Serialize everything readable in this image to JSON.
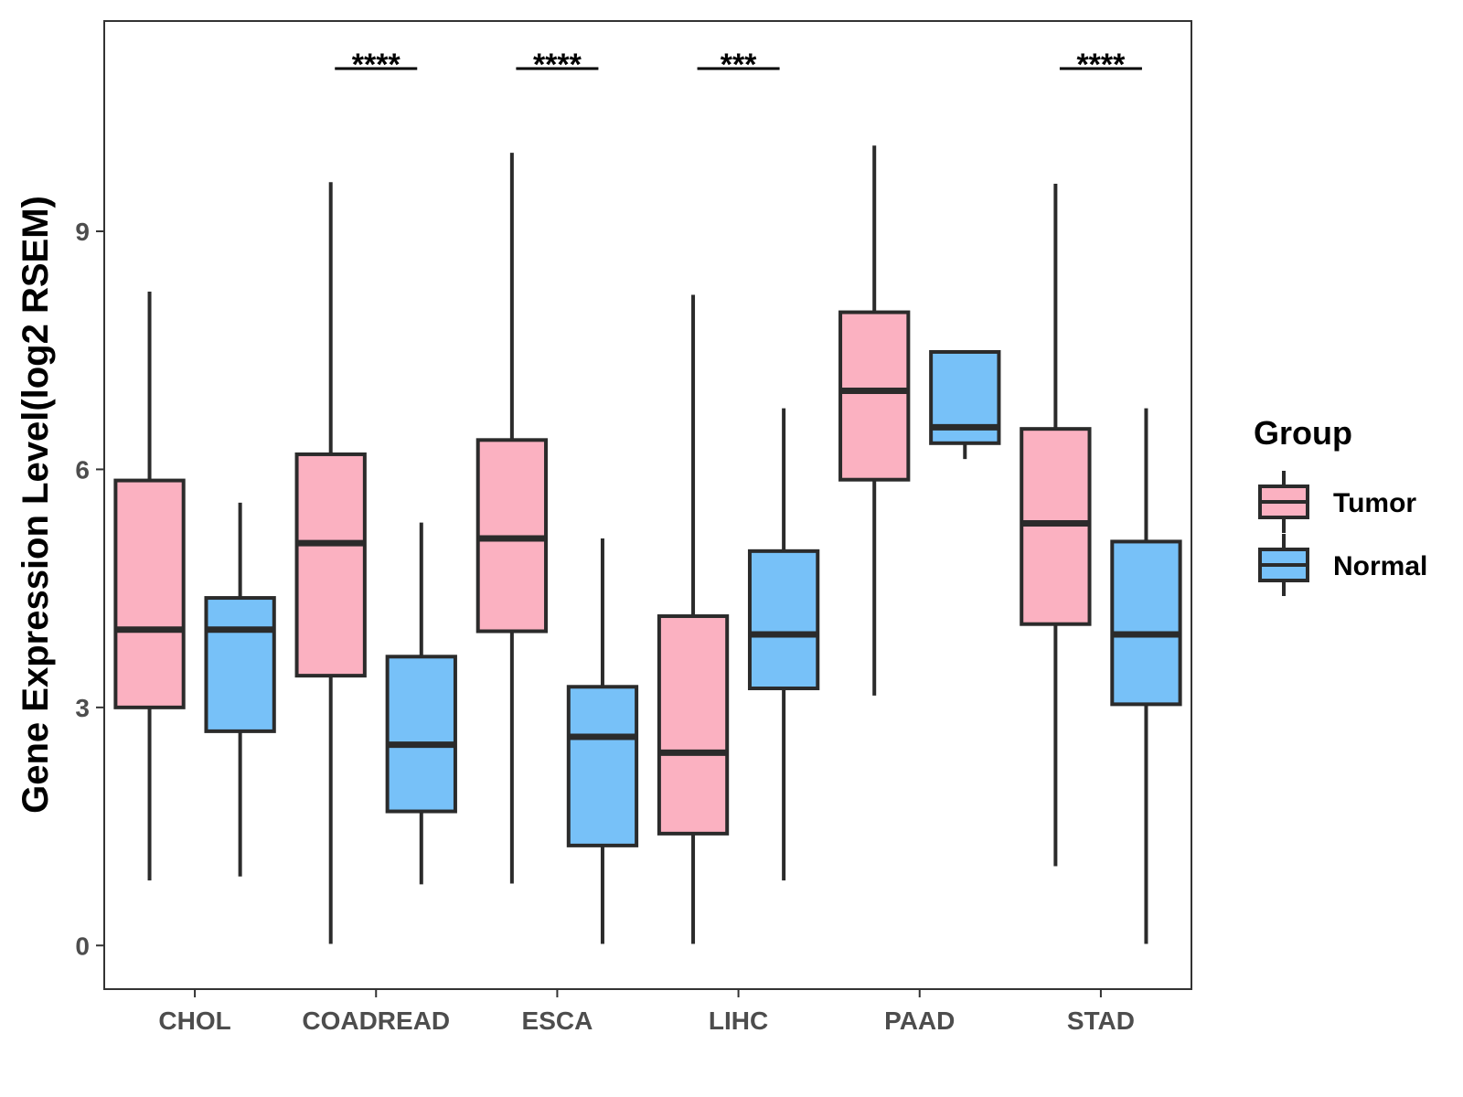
{
  "chart_data": {
    "type": "boxplot",
    "title": "",
    "xlabel": "",
    "ylabel": "Gene Expression Level(log2 RSEM)",
    "ylim": [
      -0.55,
      11.65
    ],
    "yticks": [
      0,
      3,
      6,
      9
    ],
    "categories": [
      "CHOL",
      "COADREAD",
      "ESCA",
      "LIHC",
      "PAAD",
      "STAD"
    ],
    "legend": {
      "title": "Group",
      "position": "right",
      "entries": [
        {
          "name": "Tumor",
          "color": "#fbb1c1"
        },
        {
          "name": "Normal",
          "color": "#77c1f8"
        }
      ]
    },
    "series": [
      {
        "name": "Tumor",
        "color": "#fbb1c1",
        "boxes": [
          {
            "min": 0.82,
            "q1": 3.0,
            "median": 3.98,
            "q3": 5.86,
            "max": 8.24
          },
          {
            "min": 0.02,
            "q1": 3.4,
            "median": 5.07,
            "q3": 6.19,
            "max": 9.62
          },
          {
            "min": 0.78,
            "q1": 3.96,
            "median": 5.13,
            "q3": 6.37,
            "max": 9.99
          },
          {
            "min": 0.02,
            "q1": 1.41,
            "median": 2.43,
            "q3": 4.15,
            "max": 8.2
          },
          {
            "min": 3.15,
            "q1": 5.87,
            "median": 6.99,
            "q3": 7.98,
            "max": 10.08
          },
          {
            "min": 1.0,
            "q1": 4.05,
            "median": 5.32,
            "q3": 6.51,
            "max": 9.6
          }
        ]
      },
      {
        "name": "Normal",
        "color": "#77c1f8",
        "boxes": [
          {
            "min": 0.87,
            "q1": 2.7,
            "median": 3.98,
            "q3": 4.38,
            "max": 5.58
          },
          {
            "min": 0.77,
            "q1": 1.69,
            "median": 2.53,
            "q3": 3.64,
            "max": 5.33
          },
          {
            "min": 0.02,
            "q1": 1.26,
            "median": 2.63,
            "q3": 3.26,
            "max": 5.13
          },
          {
            "min": 0.82,
            "q1": 3.24,
            "median": 3.92,
            "q3": 4.97,
            "max": 6.77
          },
          {
            "min": 6.13,
            "q1": 6.33,
            "median": 6.53,
            "q3": 7.48,
            "max": 7.48
          },
          {
            "min": 0.02,
            "q1": 3.04,
            "median": 3.92,
            "q3": 5.09,
            "max": 6.77
          }
        ]
      }
    ],
    "significance": [
      {
        "category": "COADREAD",
        "label": "****"
      },
      {
        "category": "ESCA",
        "label": "****"
      },
      {
        "category": "LIHC",
        "label": "***"
      },
      {
        "category": "STAD",
        "label": "****"
      }
    ]
  }
}
